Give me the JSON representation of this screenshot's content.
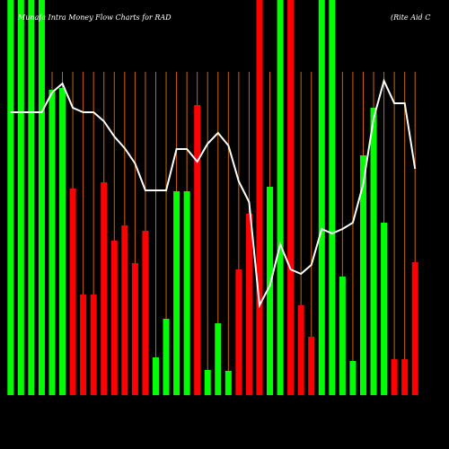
{
  "chart_data": {
    "type": "bar",
    "title": "Munafa Intra Money Flow Charts for RAD",
    "subtitle": "(Rite Aid C",
    "ylim": [
      0,
      440
    ],
    "values": [
      440,
      440,
      440,
      440,
      340,
      342,
      230,
      112,
      112,
      237,
      172,
      189,
      147,
      183,
      42,
      85,
      227,
      227,
      323,
      28,
      80,
      27,
      140,
      202,
      440,
      232,
      440,
      440,
      100,
      65,
      440,
      440,
      132,
      38,
      267,
      320,
      192,
      40,
      40,
      148
    ],
    "bar_colors": [
      "#00ff00",
      "#00ff00",
      "#00ff00",
      "#00ff00",
      "#00ff00",
      "#00ff00",
      "#ff0000",
      "#ff0000",
      "#ff0000",
      "#ff0000",
      "#ff0000",
      "#ff0000",
      "#ff0000",
      "#ff0000",
      "#00ff00",
      "#00ff00",
      "#00ff00",
      "#00ff00",
      "#ff0000",
      "#00ff00",
      "#00ff00",
      "#00ff00",
      "#ff0000",
      "#ff0000",
      "#ff0000",
      "#00ff00",
      "#00ff00",
      "#ff0000",
      "#ff0000",
      "#ff0000",
      "#00ff00",
      "#00ff00",
      "#00ff00",
      "#00ff00",
      "#00ff00",
      "#00ff00",
      "#00ff00",
      "#ff0000",
      "#ff0000",
      "#ff0000"
    ],
    "line": {
      "color": "#ffffff",
      "values": [
        315,
        315,
        315,
        315,
        337,
        347,
        320,
        315,
        315,
        305,
        288,
        275,
        258,
        228,
        228,
        228,
        274,
        274,
        260,
        280,
        292,
        278,
        238,
        215,
        100,
        122,
        168,
        140,
        135,
        145,
        185,
        180,
        185,
        192,
        235,
        308,
        350,
        325,
        325,
        252
      ]
    },
    "divider_color": "#cc6600"
  }
}
